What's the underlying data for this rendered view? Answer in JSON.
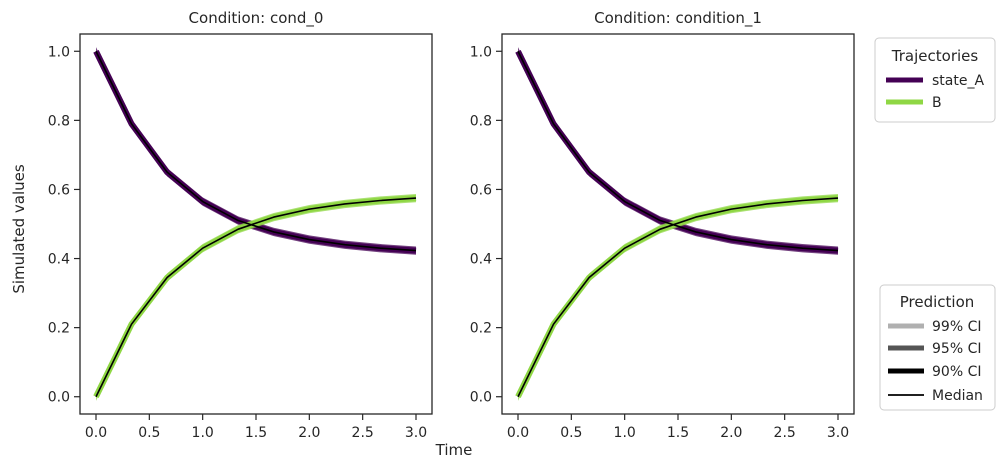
{
  "figure": {
    "ylabel": "Simulated values",
    "xlabel": "Time"
  },
  "legend_trajectories": {
    "title": "Trajectories",
    "entries": [
      {
        "label": "state_A",
        "color": "#440154"
      },
      {
        "label": "B",
        "color": "#8fd744"
      }
    ]
  },
  "legend_prediction": {
    "title": "Prediction",
    "entries": [
      {
        "label": "99% CI",
        "color": "#b0b0b0"
      },
      {
        "label": "95% CI",
        "color": "#555555"
      },
      {
        "label": "90% CI",
        "color": "#000000"
      },
      {
        "label": "Median",
        "color": "#000000"
      }
    ]
  },
  "chart_data": [
    {
      "type": "line",
      "title": "Condition: cond_0",
      "xlim": [
        -0.15,
        3.15
      ],
      "ylim": [
        -0.05,
        1.05
      ],
      "xticks": [
        "0.0",
        "0.5",
        "1.0",
        "1.5",
        "2.0",
        "2.5",
        "3.0"
      ],
      "yticks": [
        "0.0",
        "0.2",
        "0.4",
        "0.6",
        "0.8",
        "1.0"
      ],
      "x": [
        0,
        0.333,
        0.667,
        1.0,
        1.333,
        1.667,
        2.0,
        2.333,
        2.667,
        3.0
      ],
      "series": [
        {
          "name": "state_A",
          "color": "#440154",
          "median": [
            1.0,
            0.79,
            0.65,
            0.565,
            0.51,
            0.477,
            0.455,
            0.44,
            0.43,
            0.423
          ],
          "band": 0.012
        },
        {
          "name": "B",
          "color": "#8fd744",
          "median": [
            0.0,
            0.21,
            0.345,
            0.43,
            0.485,
            0.52,
            0.543,
            0.558,
            0.568,
            0.575
          ],
          "band": 0.012
        }
      ]
    },
    {
      "type": "line",
      "title": "Condition: condition_1",
      "xlim": [
        -0.15,
        3.15
      ],
      "ylim": [
        -0.05,
        1.05
      ],
      "xticks": [
        "0.0",
        "0.5",
        "1.0",
        "1.5",
        "2.0",
        "2.5",
        "3.0"
      ],
      "yticks": [
        "0.0",
        "0.2",
        "0.4",
        "0.6",
        "0.8",
        "1.0"
      ],
      "x": [
        0,
        0.333,
        0.667,
        1.0,
        1.333,
        1.667,
        2.0,
        2.333,
        2.667,
        3.0
      ],
      "series": [
        {
          "name": "state_A",
          "color": "#440154",
          "median": [
            1.0,
            0.79,
            0.65,
            0.565,
            0.51,
            0.477,
            0.455,
            0.44,
            0.43,
            0.423
          ],
          "band": 0.012
        },
        {
          "name": "B",
          "color": "#8fd744",
          "median": [
            0.0,
            0.21,
            0.345,
            0.43,
            0.485,
            0.52,
            0.543,
            0.558,
            0.568,
            0.575
          ],
          "band": 0.012
        }
      ]
    }
  ]
}
